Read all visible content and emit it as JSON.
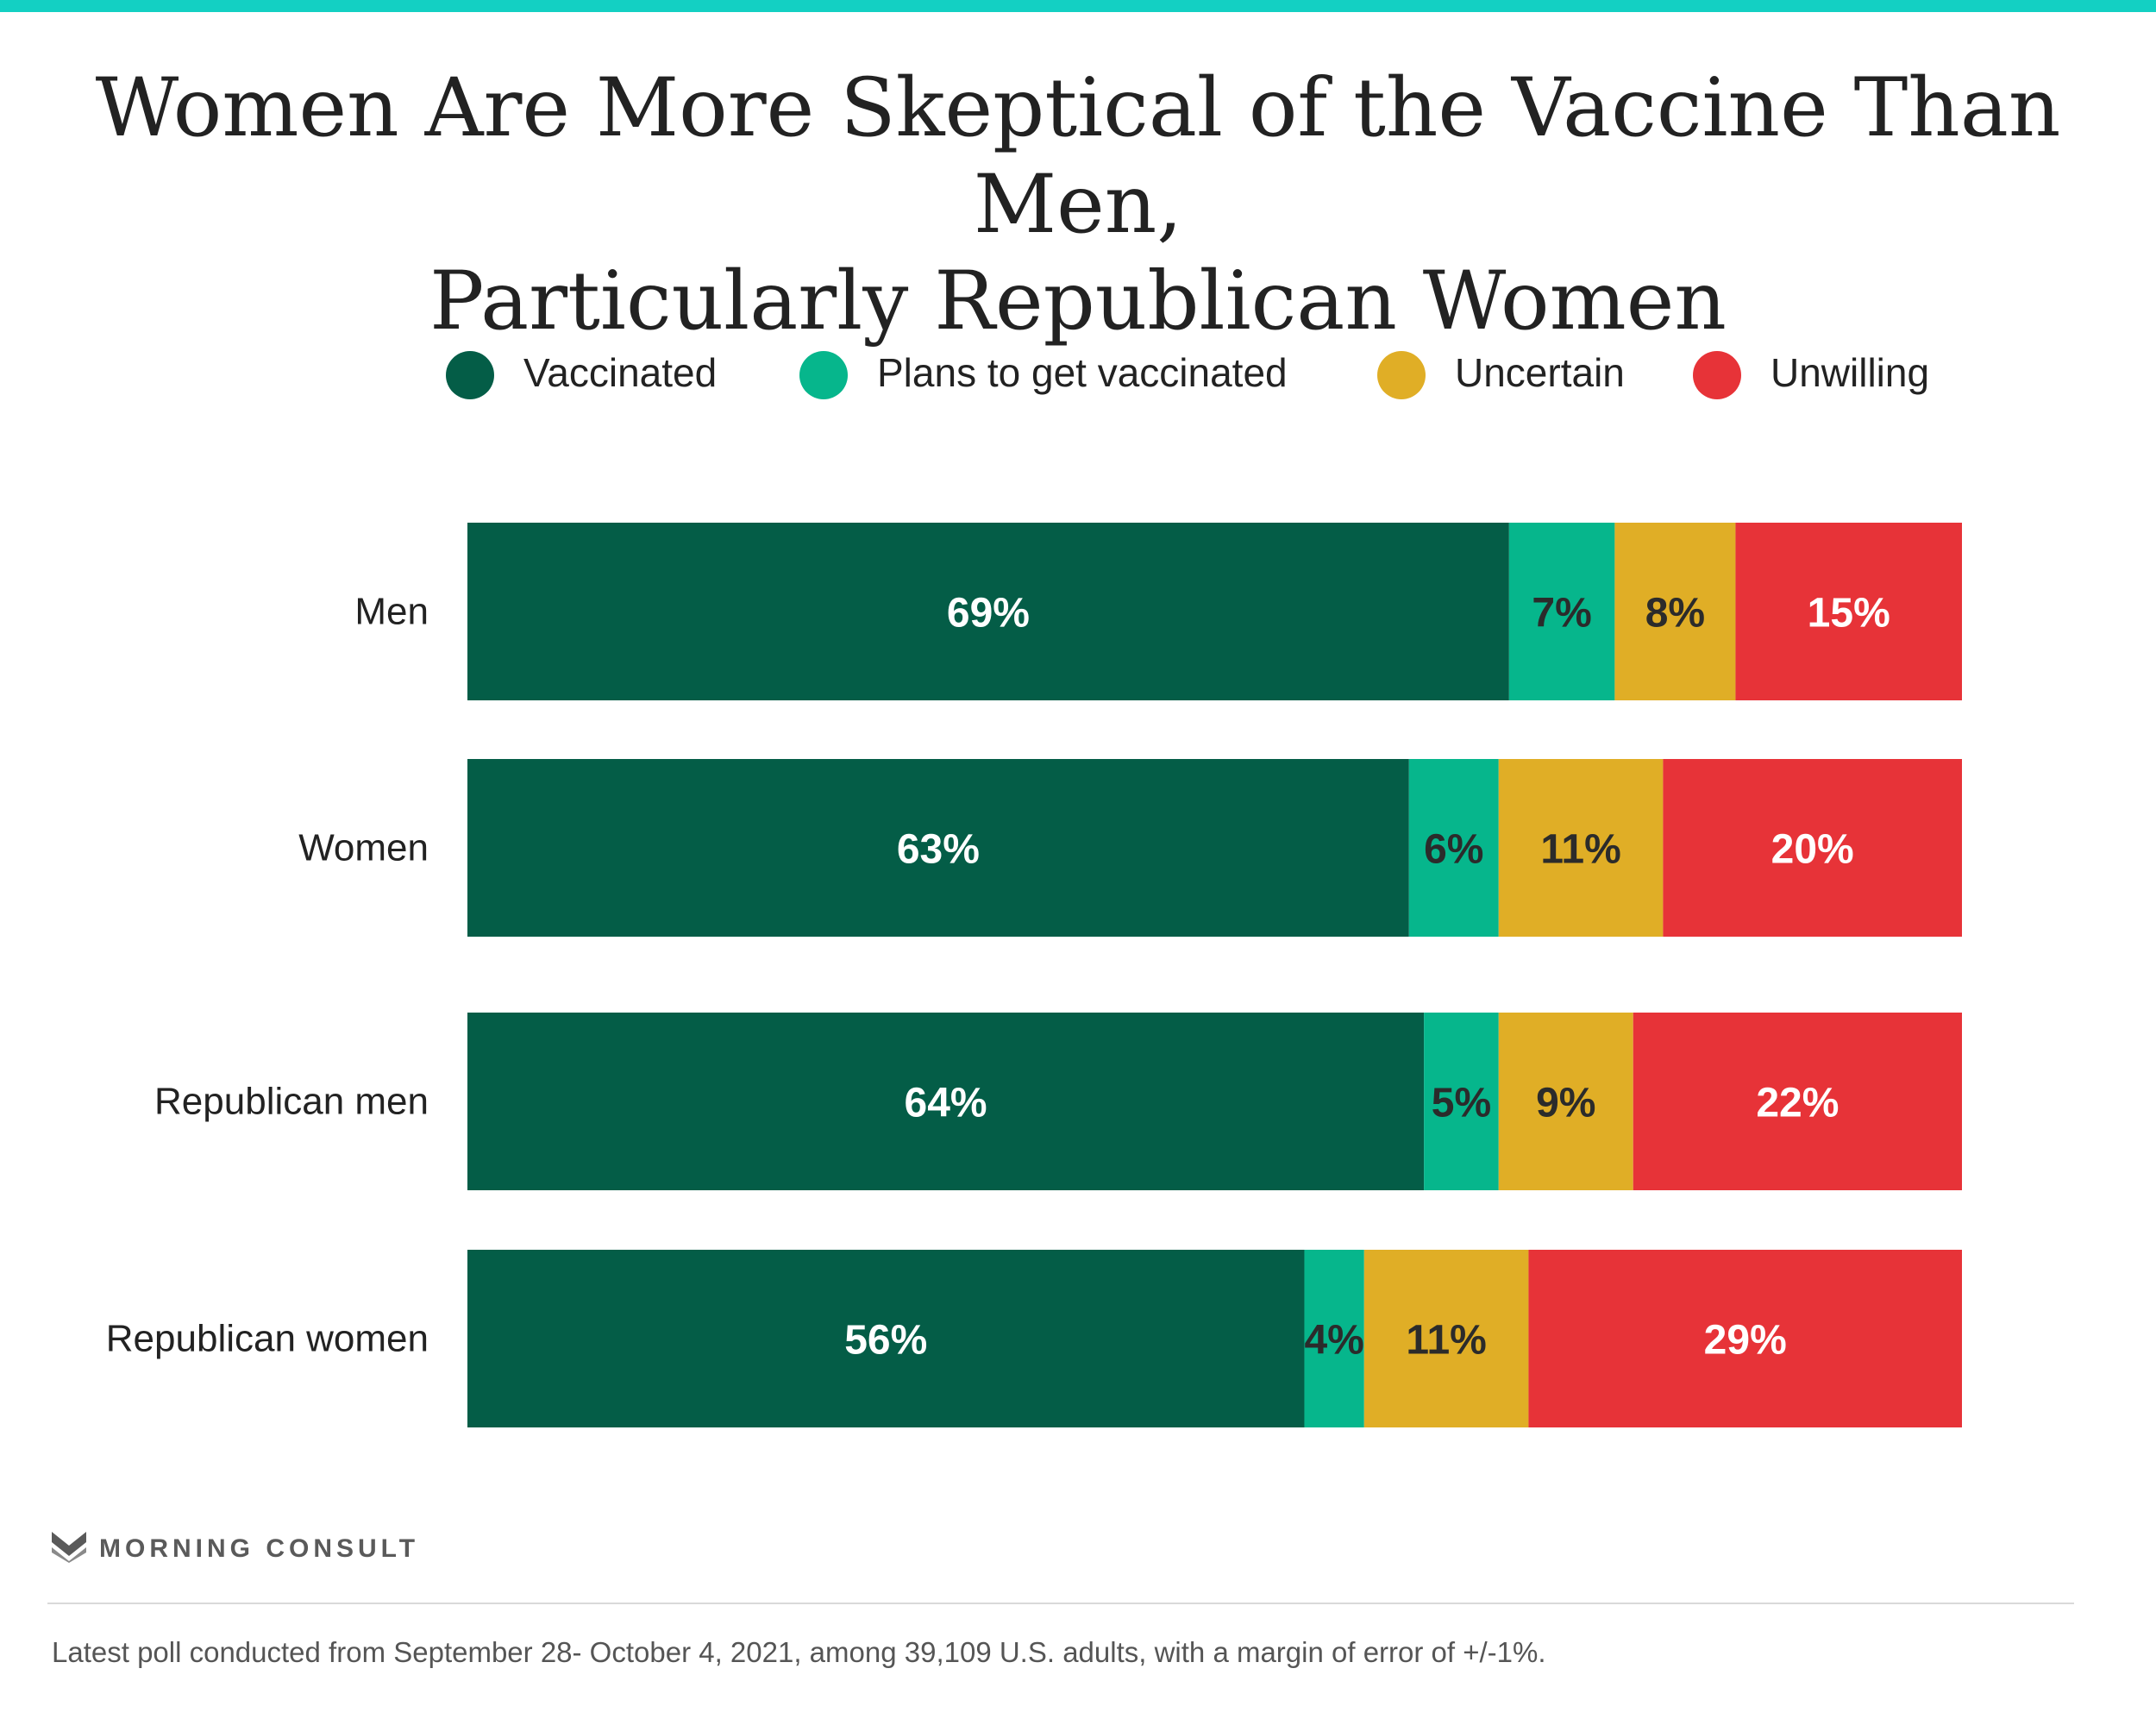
{
  "colors": {
    "top_bar": "#13d0c3",
    "vaccinated": "#045d47",
    "plans": "#06b68c",
    "uncertain": "#e0ae26",
    "unwilling": "#e73338",
    "label_light": "#ffffff",
    "label_dark": "#2b2b2b"
  },
  "title_lines": [
    "Women Are More Skeptical of the Vaccine Than Men,",
    "Particularly Republican Women"
  ],
  "chart_data": {
    "type": "bar",
    "orientation": "horizontal",
    "stacked": true,
    "title": "Women Are More Skeptical of the Vaccine Than Men, Particularly Republican Women",
    "categories": [
      "Men",
      "Women",
      "Republican men",
      "Republican women"
    ],
    "series": [
      {
        "name": "Vaccinated",
        "values": [
          69,
          63,
          64,
          56
        ],
        "labels": [
          "69%",
          "63%",
          "64%",
          "56%"
        ],
        "color": "#045d47",
        "label_color": "#ffffff"
      },
      {
        "name": "Plans to get vaccinated",
        "values": [
          7,
          6,
          5,
          4
        ],
        "labels": [
          "7%",
          "6%",
          "5%",
          "4%"
        ],
        "color": "#06b68c",
        "label_color": "#2b2b2b"
      },
      {
        "name": "Uncertain",
        "values": [
          8,
          11,
          9,
          11
        ],
        "labels": [
          "8%",
          "11%",
          "9%",
          "11%"
        ],
        "color": "#e0ae26",
        "label_color": "#2b2b2b"
      },
      {
        "name": "Unwilling",
        "values": [
          15,
          20,
          22,
          29
        ],
        "labels": [
          "15%",
          "20%",
          "22%",
          "29%"
        ],
        "color": "#e73338",
        "label_color": "#ffffff"
      }
    ],
    "xlim": [
      0,
      100
    ],
    "legend_position": "top",
    "grid": false
  },
  "brand": {
    "name": "MORNING CONSULT"
  },
  "footnote": "Latest poll conducted from September 28- October 4, 2021, among 39,109 U.S. adults, with a margin of error of +/-1%."
}
